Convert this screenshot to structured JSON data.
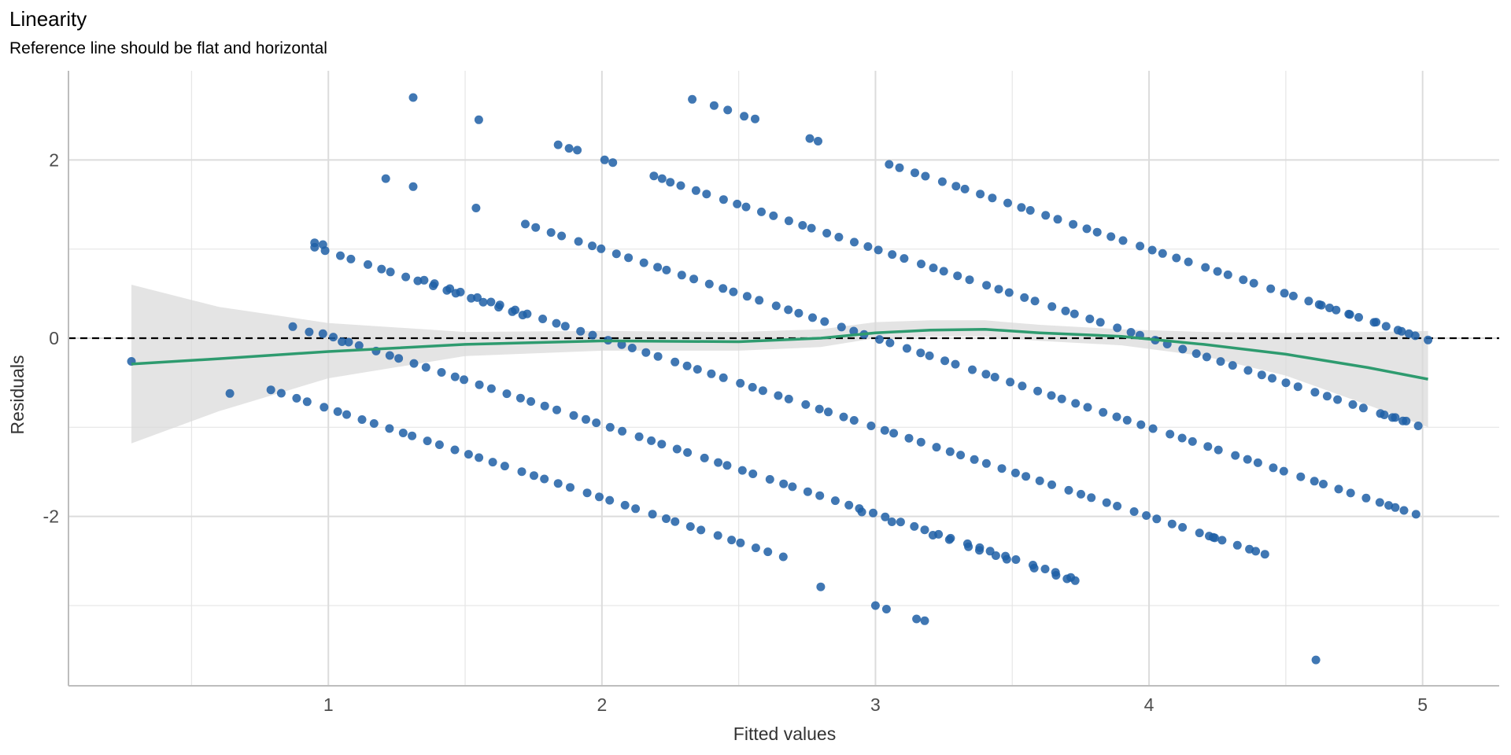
{
  "chart_data": {
    "type": "scatter",
    "title": "Linearity",
    "subtitle": "Reference line should be flat and horizontal",
    "xlabel": "Fitted values",
    "ylabel": "Residuals",
    "xlim": [
      0.05,
      5.28
    ],
    "ylim": [
      -3.9,
      3.0
    ],
    "x_ticks": [
      1,
      2,
      3,
      4,
      5
    ],
    "x_tick_labels": [
      "1",
      "2",
      "3",
      "4",
      "5"
    ],
    "y_ticks": [
      -2,
      0,
      2
    ],
    "y_tick_labels": [
      "-2",
      "0",
      "2"
    ],
    "x_minor_gridlines": [
      0.5,
      1.5,
      2.5,
      3.5,
      4.5
    ],
    "y_minor_gridlines": [
      -3,
      -1,
      1
    ],
    "grid": true,
    "reference_line": {
      "y": 0,
      "style": "dashed",
      "color": "#000000"
    },
    "point_color": "#1f5fa6",
    "smooth_color": "#2e9b6f",
    "band_color": "#d9d9d9",
    "point_bands": [
      {
        "x_start": 0.79,
        "x_end": 2.67,
        "level": 0.21
      },
      {
        "x_start": 0.98,
        "x_end": 3.73,
        "level": 1.03
      },
      {
        "x_start": 1.35,
        "x_end": 4.43,
        "level": 2.0
      },
      {
        "x_start": 1.72,
        "x_end": 4.98,
        "level": 3.0
      },
      {
        "x_start": 2.25,
        "x_end": 4.98,
        "level": 4.0
      },
      {
        "x_start": 3.05,
        "x_end": 5.0,
        "level": 5.0
      },
      {
        "x_start": 0.95,
        "x_end": 1.72,
        "level": 1.97
      }
    ],
    "isolated_points": [
      [
        0.28,
        -0.26
      ],
      [
        0.64,
        -0.62
      ],
      [
        0.87,
        0.13
      ],
      [
        0.93,
        0.07
      ],
      [
        1.05,
        -0.04
      ],
      [
        0.95,
        1.07
      ],
      [
        0.98,
        1.05
      ],
      [
        1.21,
        1.79
      ],
      [
        1.31,
        1.7
      ],
      [
        1.31,
        2.7
      ],
      [
        1.55,
        2.45
      ],
      [
        1.54,
        1.46
      ],
      [
        1.84,
        2.17
      ],
      [
        1.88,
        2.13
      ],
      [
        1.91,
        2.11
      ],
      [
        2.01,
        2.0
      ],
      [
        2.04,
        1.97
      ],
      [
        2.19,
        1.82
      ],
      [
        2.22,
        1.79
      ],
      [
        2.33,
        2.68
      ],
      [
        2.41,
        2.61
      ],
      [
        2.46,
        2.56
      ],
      [
        2.52,
        2.49
      ],
      [
        2.56,
        2.46
      ],
      [
        2.76,
        2.24
      ],
      [
        2.79,
        2.21
      ],
      [
        2.8,
        -2.79
      ],
      [
        2.95,
        -1.95
      ],
      [
        3.0,
        -3.0
      ],
      [
        3.04,
        -3.04
      ],
      [
        3.06,
        -2.06
      ],
      [
        3.15,
        -3.15
      ],
      [
        3.18,
        -3.17
      ],
      [
        3.21,
        -2.21
      ],
      [
        3.27,
        -2.26
      ],
      [
        3.34,
        -2.34
      ],
      [
        3.38,
        -2.38
      ],
      [
        3.44,
        -2.44
      ],
      [
        3.48,
        -2.48
      ],
      [
        3.58,
        -2.58
      ],
      [
        3.66,
        -2.66
      ],
      [
        3.7,
        -2.7
      ],
      [
        3.73,
        -2.72
      ],
      [
        4.22,
        -2.22
      ],
      [
        4.24,
        -2.24
      ],
      [
        4.39,
        -2.39
      ],
      [
        4.61,
        -3.61
      ],
      [
        4.9,
        -1.9
      ],
      [
        4.86,
        -0.86
      ],
      [
        4.9,
        -0.89
      ],
      [
        4.94,
        -0.93
      ],
      [
        4.63,
        0.37
      ],
      [
        4.66,
        0.34
      ],
      [
        4.73,
        0.27
      ],
      [
        4.83,
        0.18
      ],
      [
        4.91,
        0.09
      ],
      [
        4.95,
        0.05
      ],
      [
        5.02,
        -0.02
      ]
    ],
    "smooth_line": [
      [
        0.28,
        -0.29
      ],
      [
        0.6,
        -0.23
      ],
      [
        1.0,
        -0.15
      ],
      [
        1.5,
        -0.07
      ],
      [
        2.0,
        -0.03
      ],
      [
        2.5,
        -0.04
      ],
      [
        2.8,
        0.0
      ],
      [
        3.0,
        0.06
      ],
      [
        3.2,
        0.09
      ],
      [
        3.4,
        0.1
      ],
      [
        3.6,
        0.06
      ],
      [
        3.9,
        0.02
      ],
      [
        4.2,
        -0.07
      ],
      [
        4.5,
        -0.18
      ],
      [
        4.8,
        -0.33
      ],
      [
        5.02,
        -0.46
      ]
    ],
    "confidence_band": [
      [
        0.28,
        -1.18,
        0.6
      ],
      [
        0.6,
        -0.82,
        0.35
      ],
      [
        1.0,
        -0.45,
        0.17
      ],
      [
        1.5,
        -0.2,
        0.07
      ],
      [
        2.0,
        -0.14,
        0.08
      ],
      [
        2.5,
        -0.14,
        0.07
      ],
      [
        2.8,
        -0.1,
        0.1
      ],
      [
        3.0,
        0.0,
        0.18
      ],
      [
        3.2,
        0.02,
        0.2
      ],
      [
        3.4,
        0.02,
        0.2
      ],
      [
        3.6,
        -0.03,
        0.15
      ],
      [
        3.9,
        -0.08,
        0.1
      ],
      [
        4.2,
        -0.2,
        0.07
      ],
      [
        4.5,
        -0.42,
        0.06
      ],
      [
        4.8,
        -0.75,
        0.07
      ],
      [
        5.02,
        -1.0,
        0.08
      ]
    ]
  }
}
